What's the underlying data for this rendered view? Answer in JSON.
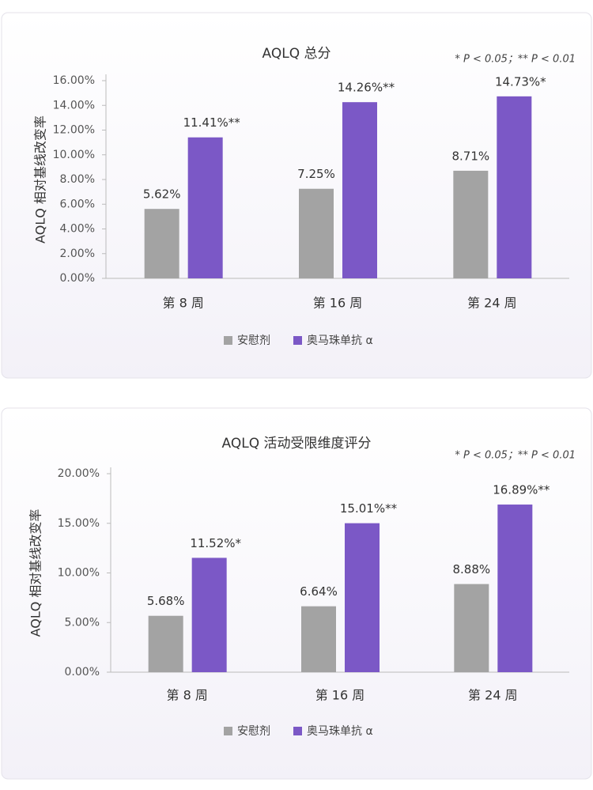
{
  "chart_data": [
    {
      "type": "bar",
      "title": "AQLQ 总分",
      "note": "* P < 0.05；** P < 0.01",
      "y_label": "AQLQ 相对基线改变率",
      "categories": [
        "第 8 周",
        "第 16 周",
        "第 24 周"
      ],
      "series": [
        {
          "name": "安慰剂",
          "color": "#a3a3a3",
          "values": [
            5.62,
            7.25,
            8.71
          ],
          "value_labels": [
            "5.62%",
            "7.25%",
            "8.71%"
          ]
        },
        {
          "name": "奥马珠单抗 α",
          "color": "#7b58c6",
          "values": [
            11.41,
            14.26,
            14.73
          ],
          "value_labels": [
            "11.41%**",
            "14.26%**",
            "14.73%*"
          ]
        }
      ],
      "ylim": [
        0,
        16
      ],
      "yticks": [
        {
          "value": 0,
          "label": "0.00%"
        },
        {
          "value": 2,
          "label": "2.00%"
        },
        {
          "value": 4,
          "label": "4.00%"
        },
        {
          "value": 6,
          "label": "6.00%"
        },
        {
          "value": 8,
          "label": "8.00%"
        },
        {
          "value": 10,
          "label": "10.00%"
        },
        {
          "value": 12,
          "label": "12.00%"
        },
        {
          "value": 14,
          "label": "14.00%"
        },
        {
          "value": 16,
          "label": "16.00%"
        }
      ],
      "grid": false,
      "legend": "bottom"
    },
    {
      "type": "bar",
      "title": "AQLQ 活动受限维度评分",
      "note": "* P < 0.05；** P < 0.01",
      "y_label": "AQLQ 相对基线改变率",
      "categories": [
        "第 8 周",
        "第 16 周",
        "第 24 周"
      ],
      "series": [
        {
          "name": "安慰剂",
          "color": "#a3a3a3",
          "values": [
            5.68,
            6.64,
            8.88
          ],
          "value_labels": [
            "5.68%",
            "6.64%",
            "8.88%"
          ]
        },
        {
          "name": "奥马珠单抗 α",
          "color": "#7b58c6",
          "values": [
            11.52,
            15.01,
            16.89
          ],
          "value_labels": [
            "11.52%*",
            "15.01%**",
            "16.89%**"
          ]
        }
      ],
      "ylim": [
        0,
        20
      ],
      "yticks": [
        {
          "value": 0,
          "label": "0.00%"
        },
        {
          "value": 5,
          "label": "5.00%"
        },
        {
          "value": 10,
          "label": "10.00%"
        },
        {
          "value": 15,
          "label": "15.00%"
        },
        {
          "value": 20,
          "label": "20.00%"
        }
      ],
      "grid": false,
      "legend": "bottom"
    }
  ]
}
